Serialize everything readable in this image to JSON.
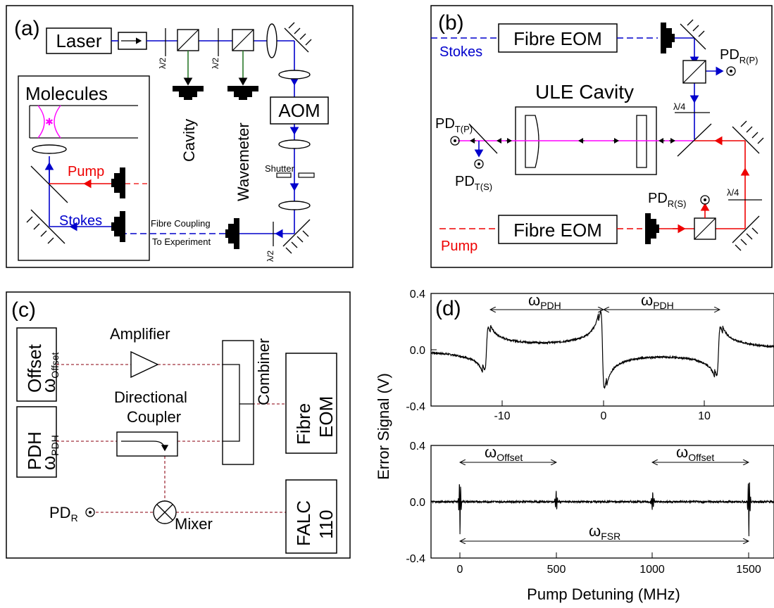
{
  "colors": {
    "stokes": "#0000cc",
    "pump": "#ee0000",
    "rf": "#a0303c",
    "fibre_out": "#2a7a2a",
    "magenta": "#ff00ff",
    "ink": "#000000"
  },
  "panel_a": {
    "tag": "(a)",
    "laser": "Laser",
    "half_wave": "λ/2",
    "cavity": "Cavity",
    "wavemeter": "Wavemeter",
    "aom": "AOM",
    "shutter": "Shutter",
    "molecules": "Molecules",
    "pump": "Pump",
    "stokes": "Stokes",
    "fibre_coupling": "Fibre Coupling",
    "to_experiment": "To Experiment"
  },
  "panel_b": {
    "tag": "(b)",
    "stokes": "Stokes",
    "pump": "Pump",
    "fibre_eom": "Fibre EOM",
    "ule_cavity": "ULE Cavity",
    "quarter_wave": "λ/4",
    "pd_main": "PD",
    "pd_rp_sub": "R(P)",
    "pd_tp_sub": "T(P)",
    "pd_ts_sub": "T(S)",
    "pd_rs_sub": "R(S)"
  },
  "panel_c": {
    "tag": "(c)",
    "offset": "Offset",
    "omega": "ω",
    "offset_sub": "Offset",
    "pdh": "PDH",
    "pdh_sub": "PDH",
    "amplifier": "Amplifier",
    "directional": "Directional",
    "coupler": "Coupler",
    "combiner": "Combiner",
    "fibre": "Fibre",
    "eom": "EOM",
    "falc": "FALC",
    "falc_num": "110",
    "pd": "PD",
    "pd_sub": "R",
    "mixer": "Mixer"
  },
  "panel_d": {
    "tag": "(d)",
    "ylabel": "Error Signal (V)",
    "xlabel": "Pump Detuning (MHz)",
    "omega": "ω",
    "top_ticks_x": [
      "-10",
      "0",
      "10"
    ],
    "top_ticks_y": [
      "0.4",
      "0.0",
      "-0.4"
    ],
    "bottom_ticks_x": [
      "0",
      "500",
      "1000",
      "1500"
    ],
    "bottom_ticks_y": [
      "0.4",
      "0.0",
      "-0.4"
    ],
    "top_annot_sub": [
      "PDH",
      "PDH"
    ],
    "bottom_annot_sub": [
      "Offset",
      "Offset",
      "FSR"
    ]
  },
  "chart_data": [
    {
      "type": "line",
      "title": "",
      "xlabel": "Pump Detuning (MHz)",
      "ylabel": "Error Signal (V)",
      "xlim": [
        -17,
        17
      ],
      "ylim": [
        -0.4,
        0.4
      ],
      "x_ticks": [
        -10,
        0,
        10
      ],
      "y_ticks": [
        -0.4,
        0.0,
        0.4
      ],
      "resonances": [
        {
          "x": -11.5,
          "amp": 0.15,
          "sign": 1
        },
        {
          "x": 0,
          "amp": 0.27,
          "sign": -1
        },
        {
          "x": 11.5,
          "amp": 0.17,
          "sign": 1
        }
      ],
      "annotations": [
        {
          "label": "ωPDH",
          "from": -11.5,
          "to": 0
        },
        {
          "label": "ωPDH",
          "from": 0,
          "to": 11.5
        }
      ]
    },
    {
      "type": "line",
      "title": "",
      "xlabel": "Pump Detuning (MHz)",
      "ylabel": "Error Signal (V)",
      "xlim": [
        -150,
        1630
      ],
      "ylim": [
        -0.4,
        0.4
      ],
      "x_ticks": [
        0,
        500,
        1000,
        1500
      ],
      "y_ticks": [
        -0.4,
        0.0,
        0.4
      ],
      "resonances": [
        {
          "x": 0,
          "amp": 0.25
        },
        {
          "x": 500,
          "amp": 0.09
        },
        {
          "x": 1000,
          "amp": 0.09
        },
        {
          "x": 1500,
          "amp": 0.27
        }
      ],
      "annotations": [
        {
          "label": "ωOffset",
          "from": 0,
          "to": 500
        },
        {
          "label": "ωOffset",
          "from": 1000,
          "to": 1500
        },
        {
          "label": "ωFSR",
          "from": 0,
          "to": 1500
        }
      ]
    }
  ]
}
